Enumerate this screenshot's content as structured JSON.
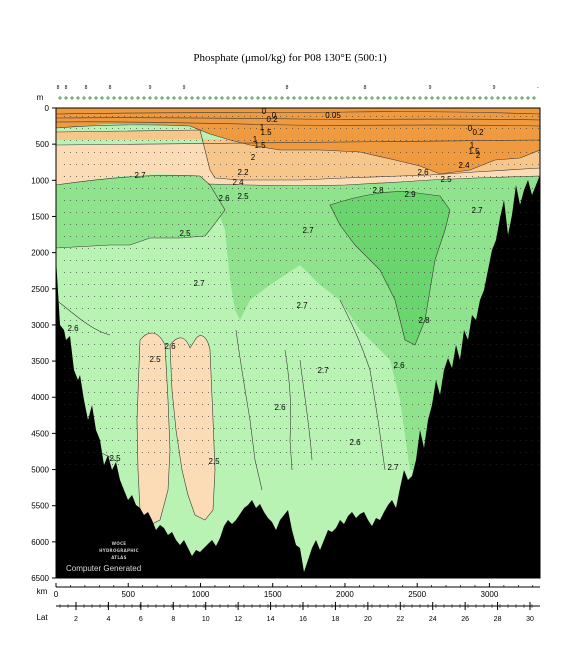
{
  "chart_data": {
    "type": "heatmap",
    "title": "Phosphate (μmol/kg) for P08 130°E (500:1)",
    "depth_axis": {
      "label": "m",
      "range": [
        0,
        6500
      ],
      "ticks": [
        0,
        500,
        1000,
        1500,
        2000,
        2500,
        3000,
        3500,
        4000,
        4500,
        5000,
        5500,
        6000,
        6500
      ]
    },
    "distance_axis": {
      "label": "km",
      "range": [
        0,
        3350
      ],
      "ticks": [
        0,
        500,
        1000,
        1500,
        2000,
        2500,
        3000
      ]
    },
    "latitude_axis": {
      "label": "Lat",
      "ticks": [
        2,
        4,
        6,
        8,
        10,
        12,
        14,
        16,
        18,
        20,
        22,
        24,
        26,
        28,
        30
      ]
    },
    "station_labels": [
      "8",
      "8",
      "8",
      "8",
      "9",
      "9",
      "8",
      "8",
      "9",
      "9",
      "-"
    ],
    "contour_labels": [
      "0.05",
      "0",
      "0",
      "0.2",
      "1",
      "1.5",
      "1",
      "1.5",
      "2",
      "0",
      "0.2",
      "1",
      "1.5",
      "2",
      "2.2",
      "2.4",
      "2.5",
      "2.6",
      "2.7",
      "2.8",
      "2.9",
      "2.4",
      "2.5",
      "2.6",
      "2.7",
      "2.8",
      "2.5",
      "2.6",
      "2.7",
      "2.5",
      "2.5",
      "2.6",
      "2.7",
      "2.6",
      "2.7",
      "2.5",
      "2.6",
      "2.7",
      "2.6",
      "2.7"
    ],
    "color_levels": [
      {
        "range": "0 - 1.5",
        "color": "#ef9a3e"
      },
      {
        "range": "1.5 - 2.4",
        "color": "#f7c68a"
      },
      {
        "range": "2.4 - 2.6",
        "color": "#fcdcb6"
      },
      {
        "range": "2.6 - 2.7",
        "color": "#b9f3b4"
      },
      {
        "range": "2.7 - 2.8",
        "color": "#8ee38c"
      },
      {
        "range": "2.8 - 2.9",
        "color": "#6bd56d"
      }
    ],
    "bathymetry_color": "#000000"
  },
  "watermark": {
    "line1": "WOCE",
    "line2": "HYDROGRAPHIC",
    "line3": "ATLAS",
    "footer": "Computer Generated"
  }
}
